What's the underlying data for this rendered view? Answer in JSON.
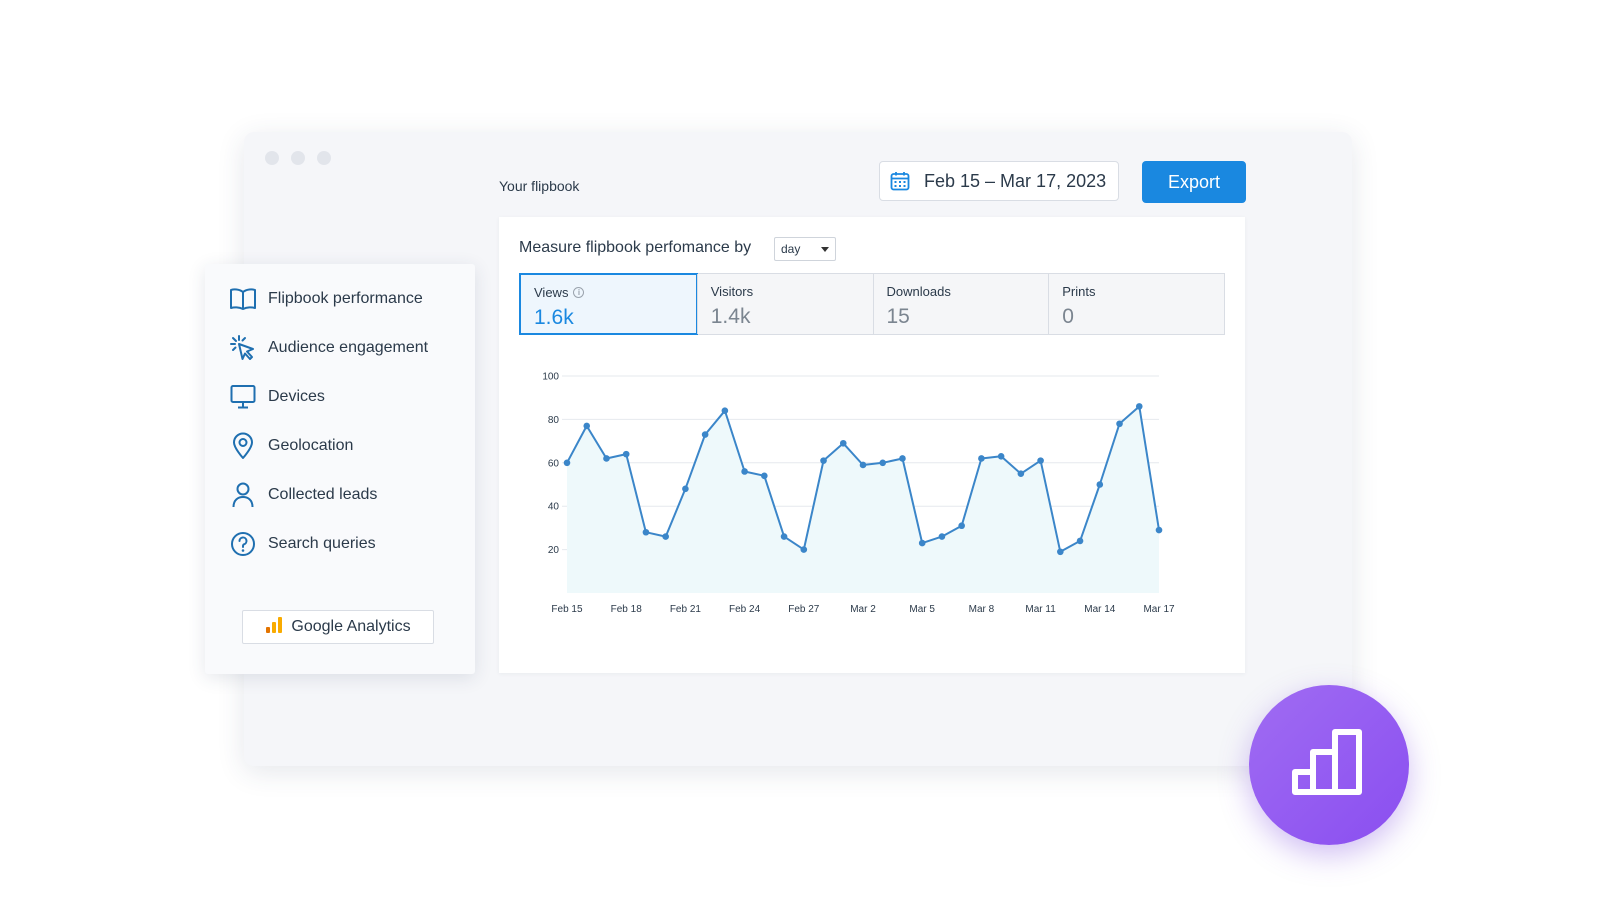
{
  "header": {
    "flipbook_label": "Your flipbook",
    "date_range": "Feb 15 – Mar 17, 2023",
    "export_label": "Export"
  },
  "measure": {
    "label": "Measure flipbook perfomance by",
    "granularity": "day"
  },
  "stats": [
    {
      "label": "Views",
      "value": "1.6k",
      "active": true
    },
    {
      "label": "Visitors",
      "value": "1.4k",
      "active": false
    },
    {
      "label": "Downloads",
      "value": "15",
      "active": false
    },
    {
      "label": "Prints",
      "value": "0",
      "active": false
    }
  ],
  "sidebar": {
    "items": [
      {
        "label": "Flipbook performance",
        "icon": "book-icon"
      },
      {
        "label": "Audience engagement",
        "icon": "cursor-click-icon"
      },
      {
        "label": "Devices",
        "icon": "monitor-icon"
      },
      {
        "label": "Geolocation",
        "icon": "location-pin-icon"
      },
      {
        "label": "Collected leads",
        "icon": "user-icon"
      },
      {
        "label": "Search queries",
        "icon": "question-circle-icon"
      }
    ],
    "ga_label": "Google Analytics"
  },
  "colors": {
    "accent": "#1a88e0",
    "line": "#3b86c9",
    "fill": "#eef9fb",
    "badge": "#9a5cf2"
  },
  "chart_data": {
    "type": "area",
    "x": [
      "Feb 15",
      "Feb 16",
      "Feb 17",
      "Feb 18",
      "Feb 19",
      "Feb 20",
      "Feb 21",
      "Feb 22",
      "Feb 23",
      "Feb 24",
      "Feb 25",
      "Feb 26",
      "Feb 27",
      "Feb 28",
      "Mar 1",
      "Mar 2",
      "Mar 3",
      "Mar 4",
      "Mar 5",
      "Mar 6",
      "Mar 7",
      "Mar 8",
      "Mar 9",
      "Mar 10",
      "Mar 11",
      "Mar 12",
      "Mar 13",
      "Mar 14",
      "Mar 15",
      "Mar 16",
      "Mar 17"
    ],
    "values": [
      60,
      77,
      62,
      64,
      28,
      26,
      48,
      73,
      84,
      56,
      54,
      26,
      20,
      61,
      69,
      59,
      60,
      62,
      23,
      26,
      31,
      62,
      63,
      55,
      61,
      19,
      24,
      50,
      78,
      86,
      29
    ],
    "xticks": [
      "Feb 15",
      "Feb 18",
      "Feb 21",
      "Feb 24",
      "Feb 27",
      "Mar 2",
      "Mar 5",
      "Mar 8",
      "Mar 11",
      "Mar 14",
      "Mar 17"
    ],
    "yticks": [
      20,
      40,
      60,
      80,
      100
    ],
    "ylim": [
      0,
      100
    ],
    "grid": true
  }
}
